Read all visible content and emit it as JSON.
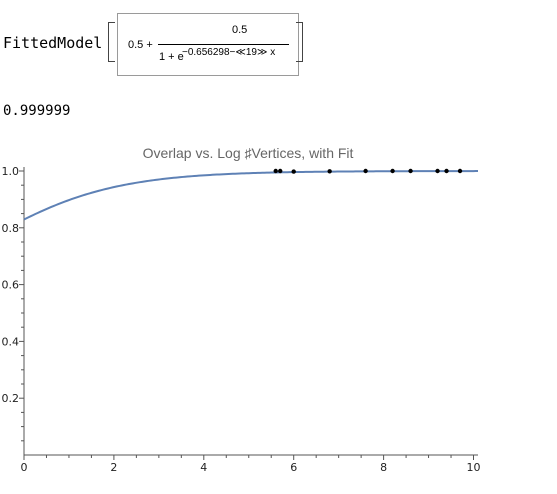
{
  "fitted_model": {
    "head": "FittedModel",
    "constant": "0.5 +",
    "numerator": "0.5",
    "denominator": "1 + e",
    "exponent": "−0.656298−≪19≫ x"
  },
  "r_squared": "0.999999",
  "chart_data": {
    "type": "scatter",
    "title": "Overlap vs. Log ♯Vertices, with Fit",
    "xlabel": "",
    "ylabel": "",
    "xlim": [
      0,
      10.1
    ],
    "ylim": [
      0,
      1.0
    ],
    "x_ticks": [
      "0",
      "2",
      "4",
      "6",
      "8",
      "10"
    ],
    "y_ticks": [
      "0.2",
      "0.4",
      "0.6",
      "0.8",
      "1.0"
    ],
    "grid": false,
    "series": [
      {
        "kind": "points",
        "color": "#000000",
        "points": [
          [
            5.6,
            1.0
          ],
          [
            5.7,
            1.0
          ],
          [
            6.0,
            0.998
          ],
          [
            6.8,
            0.999
          ],
          [
            7.6,
            1.0
          ],
          [
            8.2,
            1.0
          ],
          [
            8.6,
            1.0
          ],
          [
            9.2,
            1.0
          ],
          [
            9.4,
            1.0
          ],
          [
            9.7,
            1.0
          ]
        ]
      },
      {
        "kind": "fit-curve",
        "color": "#5e81b5",
        "model": "0.5 + 0.5/(1 + e^(-0.656298 - 0.7 x))"
      }
    ]
  }
}
